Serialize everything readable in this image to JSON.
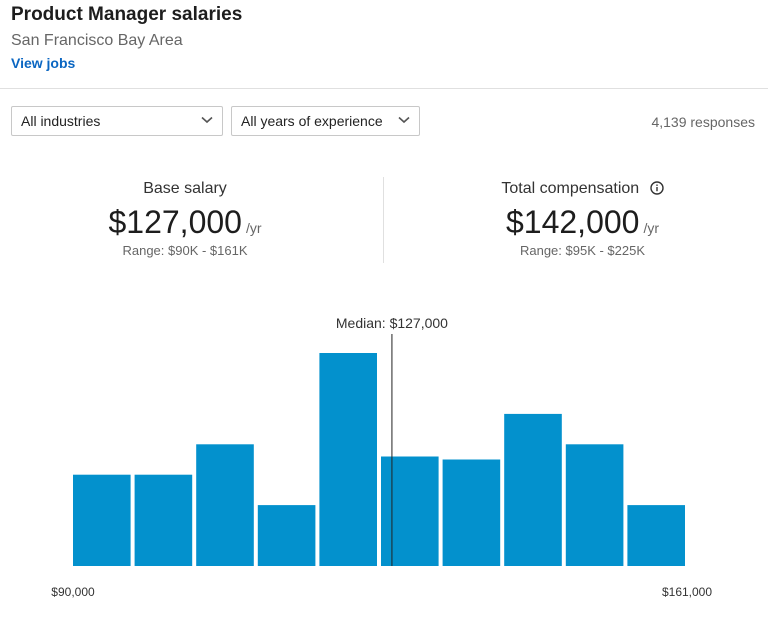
{
  "header": {
    "title": "Product Manager salaries",
    "location": "San Francisco Bay Area",
    "view_jobs": "View jobs"
  },
  "filters": {
    "industry": "All industries",
    "experience": "All years of experience",
    "responses": "4,139 responses"
  },
  "stats": {
    "base": {
      "label": "Base salary",
      "value": "$127,000",
      "unit": "/yr",
      "range": "Range: $90K - $161K"
    },
    "total": {
      "label": "Total compensation",
      "value": "$142,000",
      "unit": "/yr",
      "range": "Range: $95K - $225K"
    }
  },
  "colors": {
    "bar": "#0391cd",
    "link": "#0a66c2"
  },
  "icons": {
    "dropdown": "chevron-down-icon",
    "info": "info-icon"
  },
  "chart_data": {
    "type": "bar",
    "title": "",
    "values": [
      3,
      3,
      4,
      2,
      7,
      3.6,
      3.5,
      5,
      4,
      2
    ],
    "median": 127000,
    "median_label": "Median: $127,000",
    "xlim": [
      90000,
      161000
    ],
    "x_min_label": "$90,000",
    "x_max_label": "$161,000",
    "grid": false
  }
}
